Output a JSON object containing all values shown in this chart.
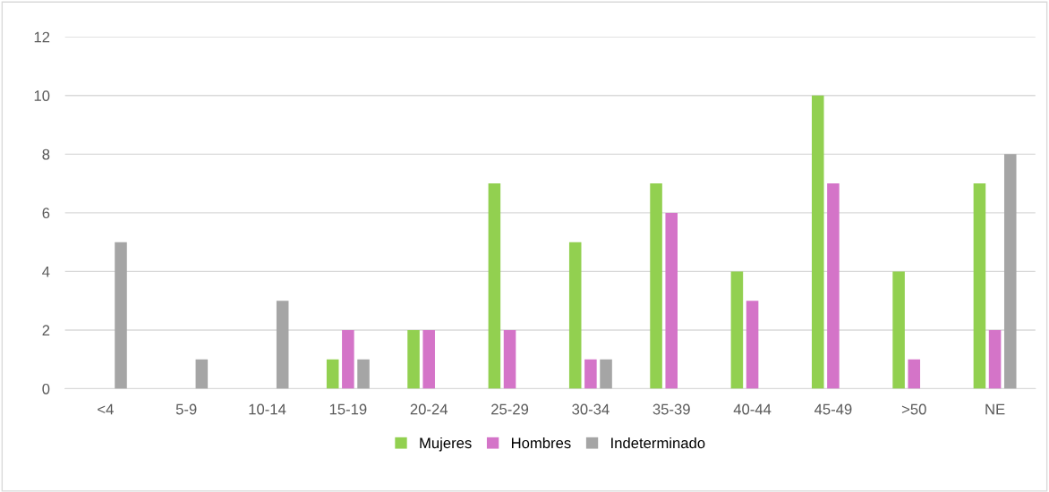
{
  "chart_data": {
    "type": "bar",
    "categories": [
      "<4",
      "5-9",
      "10-14",
      "15-19",
      "20-24",
      "25-29",
      "30-34",
      "35-39",
      "40-44",
      "45-49",
      ">50",
      "NE"
    ],
    "series": [
      {
        "name": "Mujeres",
        "color": "#92d050",
        "values": [
          0,
          0,
          0,
          1,
          2,
          7,
          5,
          7,
          4,
          10,
          4,
          7
        ]
      },
      {
        "name": "Hombres",
        "color": "#d474c8",
        "values": [
          0,
          0,
          0,
          2,
          2,
          2,
          1,
          6,
          3,
          7,
          1,
          2
        ]
      },
      {
        "name": "Indeterminado",
        "color": "#a5a5a5",
        "values": [
          5,
          1,
          3,
          1,
          0,
          0,
          1,
          0,
          0,
          0,
          0,
          8
        ]
      }
    ],
    "ylim": [
      0,
      12
    ],
    "yticks": [
      0,
      2,
      4,
      6,
      8,
      10,
      12
    ],
    "grid": "y",
    "legend": "bottom"
  }
}
